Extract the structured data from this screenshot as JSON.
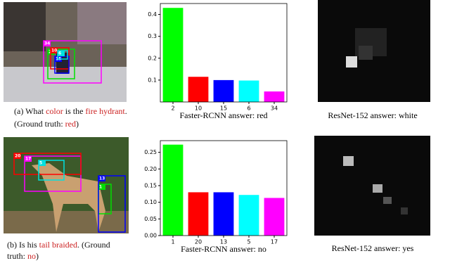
{
  "figures": [
    {
      "boxes": [
        {
          "label": "34",
          "color": "#ff00ff"
        },
        {
          "label": "2",
          "color": "#00e000"
        },
        {
          "label": "10",
          "color": "#ff0000"
        },
        {
          "label": "15",
          "color": "#0000ff"
        },
        {
          "label": "6",
          "color": "#00e0e0"
        }
      ],
      "caption": [
        [
          {
            "text": "(a) What "
          },
          {
            "text": "color",
            "color": "#cc2222"
          },
          {
            "text": " is the "
          },
          {
            "text": "fire hydrant",
            "color": "#cc2222"
          },
          {
            "text": "."
          }
        ],
        [
          {
            "text": "(Ground truth: "
          },
          {
            "text": "red",
            "color": "#cc2222"
          },
          {
            "text": ")"
          }
        ]
      ],
      "attention_caption": "ResNet-152 answer: white"
    },
    {
      "boxes": [
        {
          "label": "17",
          "color": "#ff00ff"
        },
        {
          "label": "1",
          "color": "#00e000"
        },
        {
          "label": "20",
          "color": "#ff0000"
        },
        {
          "label": "13",
          "color": "#0000ff"
        },
        {
          "label": "5",
          "color": "#00e0e0"
        }
      ],
      "caption": [
        [
          {
            "text": "(b) Is his "
          },
          {
            "text": "tail braided",
            "color": "#cc2222"
          },
          {
            "text": ". (Ground"
          }
        ],
        [
          {
            "text": "truth: "
          },
          {
            "text": "no",
            "color": "#cc2222"
          },
          {
            "text": ")"
          }
        ]
      ],
      "attention_caption": "ResNet-152 answer: yes"
    }
  ],
  "chart_data": [
    {
      "type": "bar",
      "xlabel": "Faster-RCNN answer: red",
      "categories": [
        "2",
        "10",
        "15",
        "6",
        "34"
      ],
      "values": [
        0.43,
        0.115,
        0.1,
        0.098,
        0.048
      ],
      "colors": [
        "#00ff00",
        "#ff0000",
        "#0000ff",
        "#00ffff",
        "#ff00ff"
      ],
      "ylim": [
        0,
        0.45
      ],
      "yticks": [
        0.1,
        0.2,
        0.3,
        0.4
      ]
    },
    {
      "type": "bar",
      "xlabel": "Faster-RCNN answer: no",
      "categories": [
        "1",
        "20",
        "13",
        "5",
        "17"
      ],
      "values": [
        0.273,
        0.13,
        0.13,
        0.122,
        0.113
      ],
      "colors": [
        "#00ff00",
        "#ff0000",
        "#0000ff",
        "#00ffff",
        "#ff00ff"
      ],
      "ylim": [
        0,
        0.285
      ],
      "yticks": [
        {
          "value": 0,
          "label": "0.00"
        },
        {
          "value": 0.05,
          "label": "0.05"
        },
        {
          "value": 0.1,
          "label": "0.10"
        },
        {
          "value": 0.15,
          "label": "0.15"
        },
        {
          "value": 0.2,
          "label": "0.20"
        },
        {
          "value": 0.25,
          "label": "0.25"
        }
      ]
    }
  ]
}
